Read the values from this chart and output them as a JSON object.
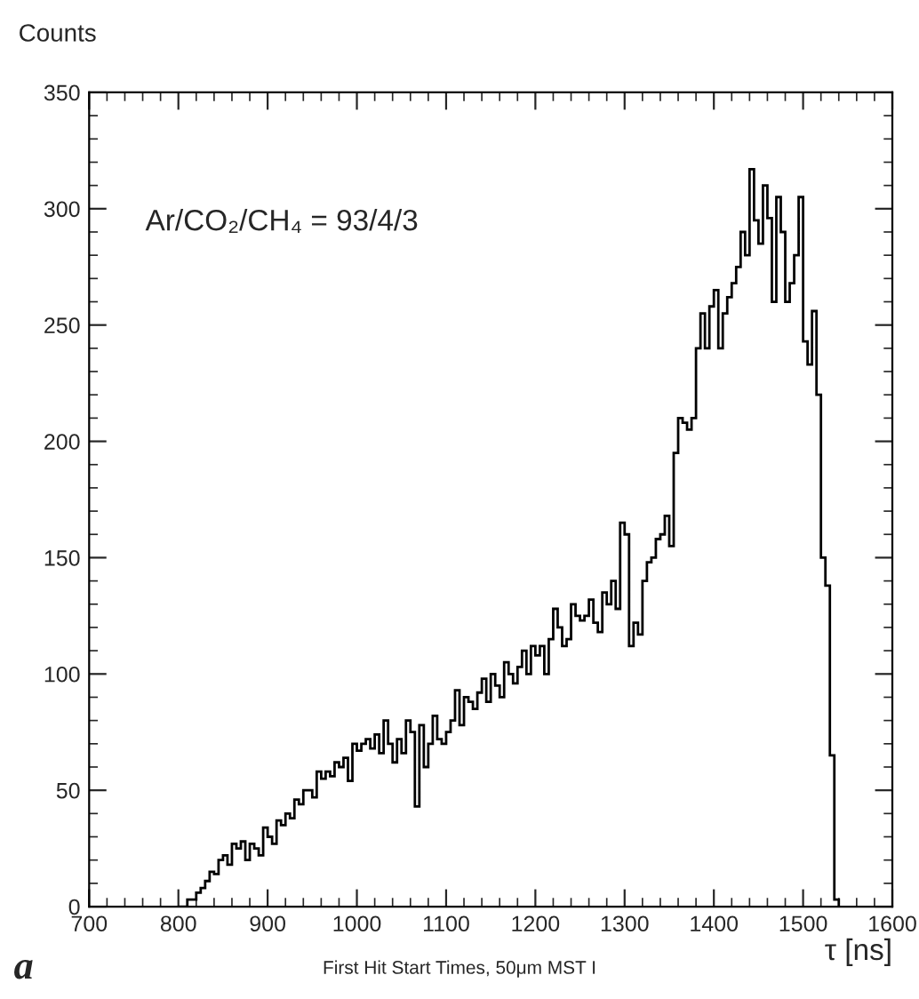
{
  "chart_data": {
    "type": "histogram",
    "ylabel": "Counts",
    "xlabel": "τ [ns]",
    "title": "First Hit Start Times, 50μm MST I",
    "annotations": [
      "Ar/CO₂/CH₄ = 93/4/3",
      "a"
    ],
    "color": "#000000",
    "bins": [
      800,
      805,
      810,
      815,
      820,
      825,
      830,
      835,
      840,
      845,
      850,
      855,
      860,
      865,
      870,
      875,
      880,
      885,
      890,
      895,
      900,
      905,
      910,
      915,
      920,
      925,
      930,
      935,
      940,
      945,
      950,
      955,
      960,
      965,
      970,
      975,
      980,
      985,
      990,
      995,
      1000,
      1005,
      1010,
      1015,
      1020,
      1025,
      1030,
      1035,
      1040,
      1045,
      1050,
      1055,
      1060,
      1065,
      1070,
      1075,
      1080,
      1085,
      1090,
      1095,
      1100,
      1105,
      1110,
      1115,
      1120,
      1125,
      1130,
      1135,
      1140,
      1145,
      1150,
      1155,
      1160,
      1165,
      1170,
      1175,
      1180,
      1185,
      1190,
      1195,
      1200,
      1205,
      1210,
      1215,
      1220,
      1225,
      1230,
      1235,
      1240,
      1245,
      1250,
      1255,
      1260,
      1265,
      1270,
      1275,
      1280,
      1285,
      1290,
      1295,
      1300,
      1305,
      1310,
      1315,
      1320,
      1325,
      1330,
      1335,
      1340,
      1345,
      1350,
      1355,
      1360,
      1365,
      1370,
      1375,
      1380,
      1385,
      1390,
      1395,
      1400,
      1405,
      1410,
      1415,
      1420,
      1425,
      1430,
      1435,
      1440,
      1445,
      1450,
      1455,
      1460,
      1465,
      1470,
      1475,
      1480,
      1485,
      1490,
      1495,
      1500,
      1505,
      1510,
      1515,
      1520,
      1525,
      1530,
      1535,
      1540
    ],
    "values": [
      0,
      0,
      3,
      3,
      6,
      8,
      11,
      15,
      14,
      20,
      22,
      18,
      27,
      25,
      28,
      20,
      27,
      25,
      22,
      34,
      30,
      27,
      37,
      35,
      40,
      38,
      46,
      44,
      50,
      50,
      47,
      58,
      55,
      58,
      56,
      62,
      60,
      64,
      54,
      70,
      67,
      70,
      72,
      68,
      74,
      66,
      80,
      70,
      62,
      72,
      66,
      80,
      75,
      43,
      78,
      60,
      70,
      82,
      72,
      70,
      75,
      80,
      93,
      78,
      90,
      88,
      85,
      92,
      98,
      88,
      100,
      95,
      90,
      105,
      100,
      96,
      103,
      110,
      100,
      112,
      108,
      112,
      100,
      115,
      128,
      120,
      112,
      115,
      130,
      125,
      123,
      125,
      132,
      122,
      118,
      135,
      130,
      140,
      128,
      165,
      160,
      112,
      122,
      117,
      140,
      148,
      150,
      158,
      160,
      168,
      155,
      195,
      210,
      208,
      205,
      210,
      240,
      255,
      240,
      258,
      265,
      240,
      255,
      262,
      268,
      275,
      290,
      280,
      317,
      295,
      285,
      310,
      296,
      260,
      305,
      290,
      260,
      268,
      280,
      305,
      243,
      233,
      256,
      220,
      150,
      138,
      65,
      3
    ],
    "xlim": [
      700,
      1600
    ],
    "xticks": [
      700,
      800,
      900,
      1000,
      1100,
      1200,
      1300,
      1400,
      1500,
      1600
    ],
    "ylim": [
      0,
      350
    ],
    "yticks": [
      0,
      50,
      100,
      150,
      200,
      250,
      300,
      350
    ],
    "grid": false,
    "legend": false
  }
}
